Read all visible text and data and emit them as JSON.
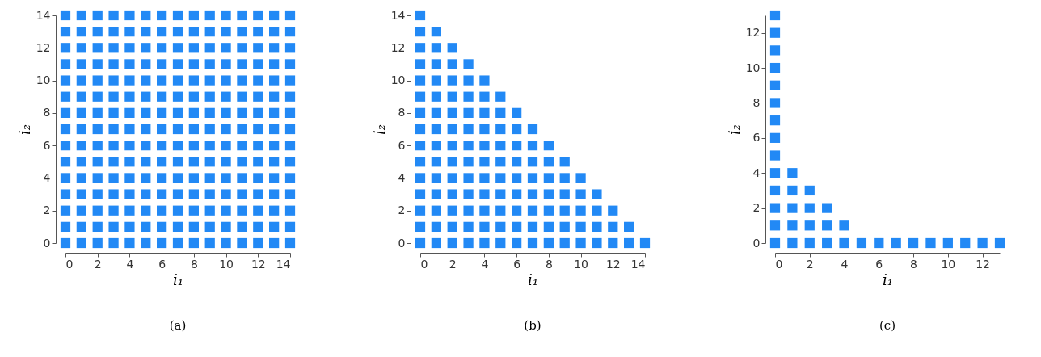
{
  "chart_data": [
    {
      "type": "scatter",
      "xlabel": "i₁",
      "ylabel": "i₂",
      "annotations": [
        "(a)"
      ],
      "marker": "square",
      "color": "#2289f5",
      "xlim": [
        0,
        14
      ],
      "ylim": [
        0,
        14
      ],
      "xticks": [
        0,
        2,
        4,
        6,
        8,
        10,
        12,
        14
      ],
      "yticks": [
        0,
        2,
        4,
        6,
        8,
        10,
        12,
        14
      ],
      "x": [
        0,
        0,
        0,
        0,
        0,
        0,
        0,
        0,
        0,
        0,
        0,
        0,
        0,
        0,
        0,
        1,
        1,
        1,
        1,
        1,
        1,
        1,
        1,
        1,
        1,
        1,
        1,
        1,
        1,
        1,
        2,
        2,
        2,
        2,
        2,
        2,
        2,
        2,
        2,
        2,
        2,
        2,
        2,
        2,
        2,
        3,
        3,
        3,
        3,
        3,
        3,
        3,
        3,
        3,
        3,
        3,
        3,
        3,
        3,
        3,
        4,
        4,
        4,
        4,
        4,
        4,
        4,
        4,
        4,
        4,
        4,
        4,
        4,
        4,
        4,
        5,
        5,
        5,
        5,
        5,
        5,
        5,
        5,
        5,
        5,
        5,
        5,
        5,
        5,
        5,
        6,
        6,
        6,
        6,
        6,
        6,
        6,
        6,
        6,
        6,
        6,
        6,
        6,
        6,
        6,
        7,
        7,
        7,
        7,
        7,
        7,
        7,
        7,
        7,
        7,
        7,
        7,
        7,
        7,
        7,
        8,
        8,
        8,
        8,
        8,
        8,
        8,
        8,
        8,
        8,
        8,
        8,
        8,
        8,
        8,
        9,
        9,
        9,
        9,
        9,
        9,
        9,
        9,
        9,
        9,
        9,
        9,
        9,
        9,
        9,
        10,
        10,
        10,
        10,
        10,
        10,
        10,
        10,
        10,
        10,
        10,
        10,
        10,
        10,
        10,
        11,
        11,
        11,
        11,
        11,
        11,
        11,
        11,
        11,
        11,
        11,
        11,
        11,
        11,
        11,
        12,
        12,
        12,
        12,
        12,
        12,
        12,
        12,
        12,
        12,
        12,
        12,
        12,
        12,
        12,
        13,
        13,
        13,
        13,
        13,
        13,
        13,
        13,
        13,
        13,
        13,
        13,
        13,
        13,
        13,
        14,
        14,
        14,
        14,
        14,
        14,
        14,
        14,
        14,
        14,
        14,
        14,
        14,
        14,
        14
      ],
      "values": [
        0,
        1,
        2,
        3,
        4,
        5,
        6,
        7,
        8,
        9,
        10,
        11,
        12,
        13,
        14,
        0,
        1,
        2,
        3,
        4,
        5,
        6,
        7,
        8,
        9,
        10,
        11,
        12,
        13,
        14,
        0,
        1,
        2,
        3,
        4,
        5,
        6,
        7,
        8,
        9,
        10,
        11,
        12,
        13,
        14,
        0,
        1,
        2,
        3,
        4,
        5,
        6,
        7,
        8,
        9,
        10,
        11,
        12,
        13,
        14,
        0,
        1,
        2,
        3,
        4,
        5,
        6,
        7,
        8,
        9,
        10,
        11,
        12,
        13,
        14,
        0,
        1,
        2,
        3,
        4,
        5,
        6,
        7,
        8,
        9,
        10,
        11,
        12,
        13,
        14,
        0,
        1,
        2,
        3,
        4,
        5,
        6,
        7,
        8,
        9,
        10,
        11,
        12,
        13,
        14,
        0,
        1,
        2,
        3,
        4,
        5,
        6,
        7,
        8,
        9,
        10,
        11,
        12,
        13,
        14,
        0,
        1,
        2,
        3,
        4,
        5,
        6,
        7,
        8,
        9,
        10,
        11,
        12,
        13,
        14,
        0,
        1,
        2,
        3,
        4,
        5,
        6,
        7,
        8,
        9,
        10,
        11,
        12,
        13,
        14,
        0,
        1,
        2,
        3,
        4,
        5,
        6,
        7,
        8,
        9,
        10,
        11,
        12,
        13,
        14,
        0,
        1,
        2,
        3,
        4,
        5,
        6,
        7,
        8,
        9,
        10,
        11,
        12,
        13,
        14,
        0,
        1,
        2,
        3,
        4,
        5,
        6,
        7,
        8,
        9,
        10,
        11,
        12,
        13,
        14,
        0,
        1,
        2,
        3,
        4,
        5,
        6,
        7,
        8,
        9,
        10,
        11,
        12,
        13,
        14,
        0,
        1,
        2,
        3,
        4,
        5,
        6,
        7,
        8,
        9,
        10,
        11,
        12,
        13,
        14
      ]
    },
    {
      "type": "scatter",
      "xlabel": "i₁",
      "ylabel": "i₂",
      "annotations": [
        "(b)"
      ],
      "marker": "square",
      "color": "#2289f5",
      "xlim": [
        0,
        14
      ],
      "ylim": [
        0,
        14
      ],
      "xticks": [
        0,
        2,
        4,
        6,
        8,
        10,
        12,
        14
      ],
      "yticks": [
        0,
        2,
        4,
        6,
        8,
        10,
        12,
        14
      ],
      "x": [
        0,
        0,
        0,
        0,
        0,
        0,
        0,
        0,
        0,
        0,
        0,
        0,
        0,
        0,
        0,
        1,
        1,
        1,
        1,
        1,
        1,
        1,
        1,
        1,
        1,
        1,
        1,
        1,
        1,
        2,
        2,
        2,
        2,
        2,
        2,
        2,
        2,
        2,
        2,
        2,
        2,
        2,
        3,
        3,
        3,
        3,
        3,
        3,
        3,
        3,
        3,
        3,
        3,
        3,
        4,
        4,
        4,
        4,
        4,
        4,
        4,
        4,
        4,
        4,
        4,
        5,
        5,
        5,
        5,
        5,
        5,
        5,
        5,
        5,
        5,
        6,
        6,
        6,
        6,
        6,
        6,
        6,
        6,
        6,
        7,
        7,
        7,
        7,
        7,
        7,
        7,
        7,
        8,
        8,
        8,
        8,
        8,
        8,
        8,
        9,
        9,
        9,
        9,
        9,
        9,
        10,
        10,
        10,
        10,
        10,
        11,
        11,
        11,
        11,
        12,
        12,
        12,
        13,
        13,
        14
      ],
      "values": [
        0,
        1,
        2,
        3,
        4,
        5,
        6,
        7,
        8,
        9,
        10,
        11,
        12,
        13,
        14,
        0,
        1,
        2,
        3,
        4,
        5,
        6,
        7,
        8,
        9,
        10,
        11,
        12,
        13,
        0,
        1,
        2,
        3,
        4,
        5,
        6,
        7,
        8,
        9,
        10,
        11,
        12,
        0,
        1,
        2,
        3,
        4,
        5,
        6,
        7,
        8,
        9,
        10,
        11,
        0,
        1,
        2,
        3,
        4,
        5,
        6,
        7,
        8,
        9,
        10,
        0,
        1,
        2,
        3,
        4,
        5,
        6,
        7,
        8,
        9,
        0,
        1,
        2,
        3,
        4,
        5,
        6,
        7,
        8,
        0,
        1,
        2,
        3,
        4,
        5,
        6,
        7,
        0,
        1,
        2,
        3,
        4,
        5,
        6,
        0,
        1,
        2,
        3,
        4,
        5,
        0,
        1,
        2,
        3,
        4,
        0,
        1,
        2,
        3,
        0,
        1,
        2,
        0,
        1,
        0
      ]
    },
    {
      "type": "scatter",
      "xlabel": "i₁",
      "ylabel": "i₂",
      "annotations": [
        "(c)"
      ],
      "marker": "square",
      "color": "#2289f5",
      "xlim": [
        0,
        13
      ],
      "ylim": [
        0,
        13
      ],
      "xticks": [
        0,
        2,
        4,
        6,
        8,
        10,
        12
      ],
      "yticks": [
        0,
        2,
        4,
        6,
        8,
        10,
        12
      ],
      "x": [
        0,
        0,
        0,
        0,
        0,
        0,
        0,
        0,
        0,
        0,
        0,
        0,
        0,
        0,
        1,
        1,
        1,
        1,
        1,
        2,
        2,
        2,
        2,
        3,
        3,
        3,
        4,
        4,
        5,
        6,
        7,
        8,
        9,
        10,
        11,
        12,
        13
      ],
      "values": [
        0,
        1,
        2,
        3,
        4,
        5,
        6,
        7,
        8,
        9,
        10,
        11,
        12,
        13,
        0,
        1,
        2,
        3,
        4,
        0,
        1,
        2,
        3,
        0,
        1,
        2,
        0,
        1,
        0,
        0,
        0,
        0,
        0,
        0,
        0,
        0,
        0
      ]
    }
  ]
}
